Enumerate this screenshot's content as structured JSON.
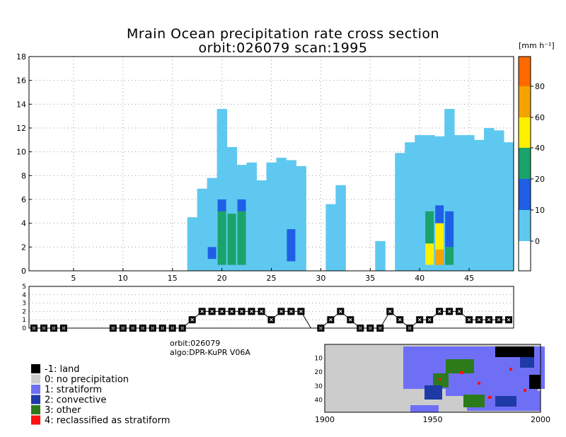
{
  "title": {
    "line1": "Mrain Ocean precipitation rate cross section",
    "line2": "orbit:026079    scan:1995"
  },
  "info": {
    "orbit": "orbit:026079",
    "algo": "algo:DPR-KuPR V06A"
  },
  "colors": {
    "c0": "#5fc8f0",
    "c10": "#1f5fe6",
    "c20": "#1aa36b",
    "c40": "#ffef00",
    "c60": "#f4a300",
    "c80": "#ff6a00",
    "land": "#000000",
    "noprecip": "#cccccc",
    "strat": "#6f6ff5",
    "conv": "#1d3aa7",
    "other": "#2c7a1a",
    "reclass": "#ff1010"
  },
  "chart_data": [
    {
      "type": "heatmap",
      "title": "Mrain Ocean precipitation rate cross section",
      "subtitle": "orbit:026079    scan:1995",
      "colorbar_unit": "[mm h⁻¹]",
      "colorbar_ticks": [
        "0",
        "10",
        "20",
        "40",
        "60",
        "80"
      ],
      "colorbar_bins": [
        {
          "from": 0,
          "to": 10,
          "color": "#5fc8f0"
        },
        {
          "from": 10,
          "to": 20,
          "color": "#1f5fe6"
        },
        {
          "from": 20,
          "to": 40,
          "color": "#1aa36b"
        },
        {
          "from": 40,
          "to": 60,
          "color": "#ffef00"
        },
        {
          "from": 60,
          "to": 80,
          "color": "#f4a300"
        },
        {
          "from": 80,
          "to": 100,
          "color": "#ff6a00"
        }
      ],
      "xlim": [
        1,
        49
      ],
      "ylim": [
        0,
        18
      ],
      "xticks": [
        5,
        10,
        15,
        20,
        25,
        30,
        35,
        40,
        45
      ],
      "yticks": [
        0,
        2,
        4,
        6,
        8,
        10,
        12,
        14,
        16,
        18
      ],
      "grid": true,
      "column_tops_km": [
        {
          "x": 17,
          "top": 4.5
        },
        {
          "x": 18,
          "top": 6.9
        },
        {
          "x": 19,
          "top": 7.8
        },
        {
          "x": 20,
          "top": 13.6
        },
        {
          "x": 21,
          "top": 10.4
        },
        {
          "x": 22,
          "top": 8.9
        },
        {
          "x": 23,
          "top": 9.1
        },
        {
          "x": 24,
          "top": 7.6
        },
        {
          "x": 25,
          "top": 9.1
        },
        {
          "x": 26,
          "top": 9.5
        },
        {
          "x": 27,
          "top": 9.3
        },
        {
          "x": 28,
          "top": 8.8
        },
        {
          "x": 31,
          "top": 5.6
        },
        {
          "x": 32,
          "top": 7.2
        },
        {
          "x": 36,
          "top": 2.5
        },
        {
          "x": 38,
          "top": 9.9
        },
        {
          "x": 39,
          "top": 10.8
        },
        {
          "x": 40,
          "top": 11.4
        },
        {
          "x": 41,
          "top": 11.4
        },
        {
          "x": 42,
          "top": 11.3
        },
        {
          "x": 43,
          "top": 13.6
        },
        {
          "x": 44,
          "top": 11.4
        },
        {
          "x": 45,
          "top": 11.4
        },
        {
          "x": 46,
          "top": 11.0
        },
        {
          "x": 47,
          "top": 12.0
        },
        {
          "x": 48,
          "top": 11.8
        },
        {
          "x": 49,
          "top": 10.8
        }
      ],
      "cells": [
        {
          "x": 19,
          "y0": 1.0,
          "y1": 2.0,
          "rate": 15
        },
        {
          "x": 20,
          "y0": 0.5,
          "y1": 5.5,
          "rate": 25
        },
        {
          "x": 20,
          "y0": 5.0,
          "y1": 6.0,
          "rate": 15
        },
        {
          "x": 21,
          "y0": 0.5,
          "y1": 4.8,
          "rate": 25
        },
        {
          "x": 22,
          "y0": 0.5,
          "y1": 5.5,
          "rate": 25
        },
        {
          "x": 22,
          "y0": 5.0,
          "y1": 6.0,
          "rate": 15
        },
        {
          "x": 27,
          "y0": 0.8,
          "y1": 3.5,
          "rate": 15
        },
        {
          "x": 41,
          "y0": 0.5,
          "y1": 2.3,
          "rate": 45
        },
        {
          "x": 41,
          "y0": 2.3,
          "y1": 5.0,
          "rate": 25
        },
        {
          "x": 42,
          "y0": 0.5,
          "y1": 1.8,
          "rate": 70
        },
        {
          "x": 42,
          "y0": 1.8,
          "y1": 4.0,
          "rate": 45
        },
        {
          "x": 42,
          "y0": 4.0,
          "y1": 5.5,
          "rate": 15
        },
        {
          "x": 43,
          "y0": 0.5,
          "y1": 2.0,
          "rate": 25
        },
        {
          "x": 43,
          "y0": 2.0,
          "y1": 5.0,
          "rate": 15
        }
      ]
    },
    {
      "type": "line",
      "ylim": [
        0,
        5
      ],
      "yticks": [
        0,
        1,
        2,
        3,
        4,
        5
      ],
      "xlim": [
        1,
        49
      ],
      "values": [
        0,
        0,
        0,
        0,
        0,
        0,
        0,
        0,
        0,
        0,
        0,
        0,
        0,
        0,
        0,
        0,
        1,
        2,
        2,
        2,
        2,
        2,
        2,
        2,
        1,
        2,
        2,
        2,
        0,
        0,
        1,
        2,
        1,
        0,
        0,
        0,
        2,
        1,
        0,
        1,
        1,
        2,
        2,
        2,
        1,
        1,
        1,
        1,
        1
      ],
      "markers": [
        1,
        1,
        1,
        1,
        0,
        0,
        0,
        0,
        1,
        1,
        1,
        1,
        1,
        1,
        1,
        1,
        1,
        1,
        1,
        1,
        1,
        1,
        1,
        1,
        1,
        1,
        1,
        1,
        0,
        1,
        1,
        1,
        1,
        1,
        1,
        1,
        1,
        1,
        1,
        1,
        1,
        1,
        1,
        1,
        1,
        1,
        1,
        1,
        1
      ]
    },
    {
      "type": "heatmap",
      "xticks": [
        1900,
        1950,
        2000
      ],
      "yticks": [
        10,
        20,
        30,
        40
      ]
    }
  ],
  "legend": [
    {
      "label": "-1: land",
      "color": "#000000"
    },
    {
      "label": "0: no precipitation",
      "color": "#cccccc"
    },
    {
      "label": "1: stratiform",
      "color": "#6f6ff5"
    },
    {
      "label": "2: convective",
      "color": "#1d3aa7"
    },
    {
      "label": "3: other",
      "color": "#2c7a1a"
    },
    {
      "label": "4: reclassified as stratiform",
      "color": "#ff1010"
    }
  ]
}
